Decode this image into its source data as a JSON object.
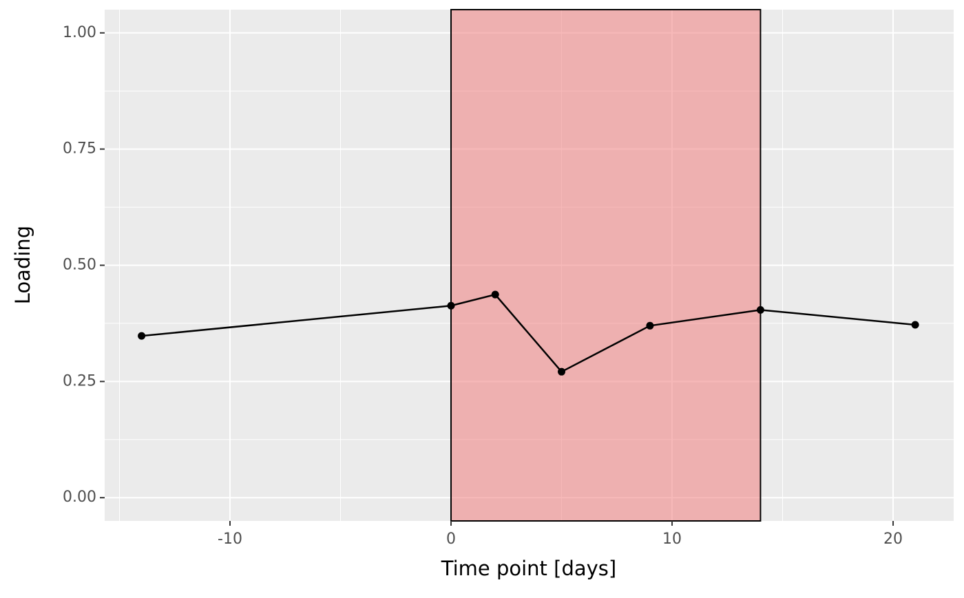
{
  "chart_data": {
    "type": "line",
    "x_label": "Time point [days]",
    "y_label": "Loading",
    "x": [
      -14,
      0,
      2,
      5,
      9,
      14,
      21
    ],
    "series": [
      {
        "color": "#000000",
        "values": [
          0.348,
          0.413,
          0.437,
          0.271,
          0.37,
          0.404,
          0.372
        ]
      }
    ],
    "xlim": [
      -15.67,
      22.74
    ],
    "ylim": [
      -0.05,
      1.05
    ],
    "xticks": [
      -10,
      0,
      10,
      20
    ],
    "yticks": [
      {
        "value": 0,
        "label": "0.00"
      },
      {
        "value": 0.25,
        "label": "0.25"
      },
      {
        "value": 0.5,
        "label": "0.50"
      },
      {
        "value": 0.75,
        "label": "0.75"
      },
      {
        "value": 1,
        "label": "1.00"
      }
    ],
    "x_minor": [
      -15,
      -5,
      5,
      15
    ],
    "y_minor": [
      0.125,
      0.375,
      0.625,
      0.875
    ],
    "shade": {
      "xrange": [
        0,
        14
      ],
      "color": "#f08080"
    },
    "grid": true
  }
}
